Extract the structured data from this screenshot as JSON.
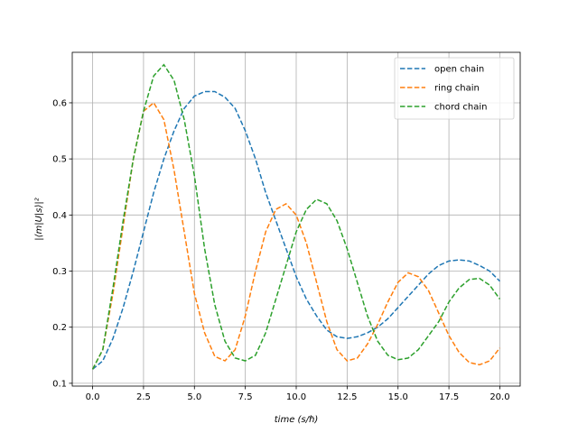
{
  "chart_data": {
    "type": "line",
    "title": "",
    "xlabel": "time (s/ℏ)",
    "ylabel": "|⟨m|U|s⟩|²",
    "xlim": [
      -1.0,
      21.0
    ],
    "ylim": [
      0.095,
      0.69
    ],
    "xticks": [
      0,
      2.5,
      5,
      7.5,
      10,
      12.5,
      15,
      17.5,
      20
    ],
    "xtick_labels": [
      "0.0",
      "2.5",
      "5.0",
      "7.5",
      "10.0",
      "12.5",
      "15.0",
      "17.5",
      "20.0"
    ],
    "yticks": [
      0.1,
      0.2,
      0.3,
      0.4,
      0.5,
      0.6
    ],
    "ytick_labels": [
      "0.1",
      "0.2",
      "0.3",
      "0.4",
      "0.5",
      "0.6"
    ],
    "grid": true,
    "legend_position": "top-right",
    "x": [
      0,
      0.5,
      1,
      1.5,
      2,
      2.5,
      3,
      3.5,
      4,
      4.5,
      5,
      5.5,
      6,
      6.5,
      7,
      7.5,
      8,
      8.5,
      9,
      9.5,
      10,
      10.5,
      11,
      11.5,
      12,
      12.5,
      13,
      13.5,
      14,
      14.5,
      15,
      15.5,
      16,
      16.5,
      17,
      17.5,
      18,
      18.5,
      19,
      19.5,
      20
    ],
    "series": [
      {
        "name": "open chain",
        "color": "#1f77b4",
        "values": [
          0.125,
          0.14,
          0.18,
          0.235,
          0.3,
          0.37,
          0.44,
          0.5,
          0.55,
          0.59,
          0.612,
          0.62,
          0.62,
          0.61,
          0.59,
          0.55,
          0.5,
          0.44,
          0.39,
          0.34,
          0.29,
          0.25,
          0.22,
          0.195,
          0.183,
          0.18,
          0.183,
          0.19,
          0.2,
          0.215,
          0.235,
          0.255,
          0.275,
          0.295,
          0.31,
          0.318,
          0.32,
          0.318,
          0.31,
          0.3,
          0.282
        ]
      },
      {
        "name": "ring chain",
        "color": "#ff7f0e",
        "values": [
          0.125,
          0.16,
          0.26,
          0.38,
          0.5,
          0.585,
          0.6,
          0.57,
          0.48,
          0.37,
          0.26,
          0.19,
          0.148,
          0.14,
          0.16,
          0.22,
          0.3,
          0.37,
          0.41,
          0.42,
          0.4,
          0.35,
          0.28,
          0.21,
          0.16,
          0.14,
          0.145,
          0.17,
          0.205,
          0.245,
          0.28,
          0.297,
          0.29,
          0.265,
          0.225,
          0.185,
          0.155,
          0.137,
          0.133,
          0.14,
          0.163
        ]
      },
      {
        "name": "chord chain",
        "color": "#2ca02c",
        "values": [
          0.125,
          0.16,
          0.27,
          0.39,
          0.5,
          0.585,
          0.648,
          0.668,
          0.64,
          0.57,
          0.47,
          0.34,
          0.24,
          0.175,
          0.145,
          0.14,
          0.15,
          0.19,
          0.25,
          0.31,
          0.37,
          0.41,
          0.428,
          0.42,
          0.39,
          0.34,
          0.28,
          0.22,
          0.175,
          0.15,
          0.142,
          0.145,
          0.16,
          0.185,
          0.21,
          0.245,
          0.27,
          0.285,
          0.287,
          0.275,
          0.25
        ]
      }
    ]
  }
}
